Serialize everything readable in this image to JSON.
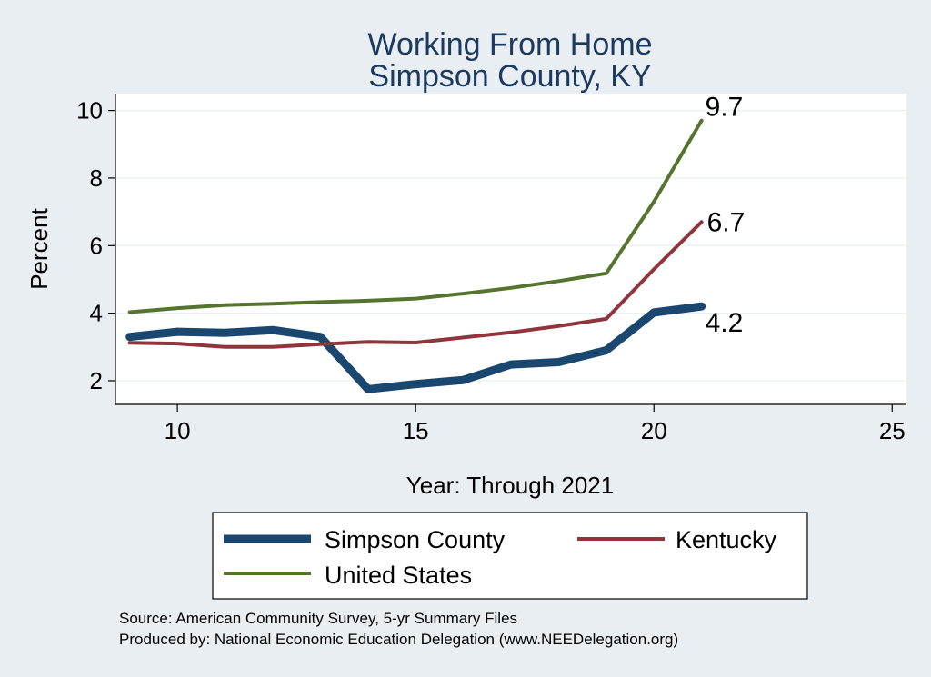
{
  "chart_data": {
    "type": "line",
    "title": [
      "Working From Home",
      "Simpson County, KY"
    ],
    "xlabel": "Year: Through 2021",
    "ylabel": "Percent",
    "xlim": [
      8.7,
      25.3
    ],
    "ylim": [
      1.3,
      10.5
    ],
    "xticks": [
      10,
      15,
      20,
      25
    ],
    "yticks": [
      2,
      4,
      6,
      8,
      10
    ],
    "grid": true,
    "x": [
      9,
      10,
      11,
      12,
      13,
      14,
      15,
      16,
      17,
      18,
      19,
      20,
      21
    ],
    "series": [
      {
        "name": "Simpson County",
        "color": "#1a476f",
        "width": "thick",
        "values": [
          3.3,
          3.45,
          3.42,
          3.5,
          3.3,
          1.75,
          1.9,
          2.02,
          2.48,
          2.55,
          2.9,
          4.02,
          4.2
        ],
        "end_label": "4.2"
      },
      {
        "name": "Kentucky",
        "color": "#90353b",
        "width": "medium",
        "values": [
          3.12,
          3.1,
          3.0,
          3.0,
          3.08,
          3.15,
          3.13,
          3.28,
          3.43,
          3.62,
          3.83,
          5.3,
          6.7
        ],
        "end_label": "6.7"
      },
      {
        "name": "United States",
        "color": "#55752f",
        "width": "medium",
        "values": [
          4.03,
          4.15,
          4.24,
          4.28,
          4.33,
          4.37,
          4.43,
          4.58,
          4.75,
          4.95,
          5.18,
          7.3,
          9.7
        ],
        "end_label": "9.7"
      }
    ],
    "legend": {
      "position": "bottom"
    },
    "notes": [
      "Source: American Community Survey, 5-yr Summary Files",
      "Produced by: National Economic Education Delegation (www.NEEDelegation.org)"
    ]
  }
}
